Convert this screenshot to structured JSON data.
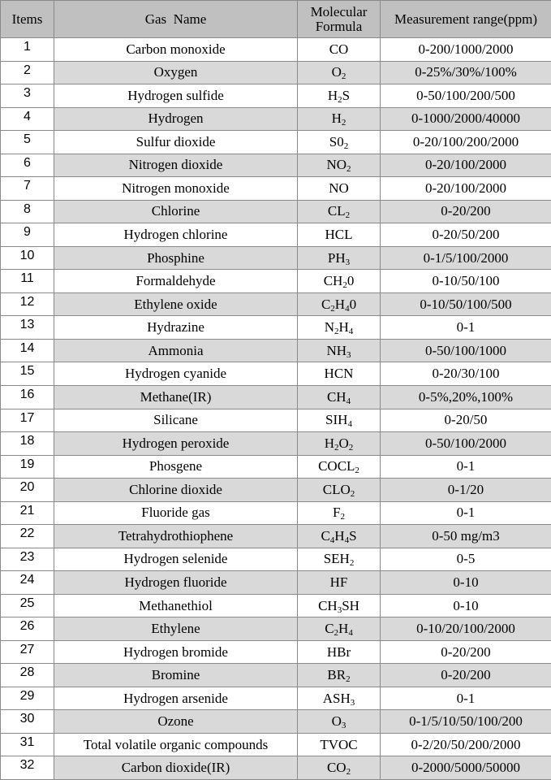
{
  "table": {
    "headers": [
      "Items",
      "Gas  Name",
      "Molecular Formula",
      "Measurement range(ppm)"
    ],
    "rows": [
      [
        1,
        "Carbon monoxide",
        [
          {
            "text": "CO"
          }
        ],
        "0-200/1000/2000"
      ],
      [
        2,
        "Oxygen",
        [
          {
            "text": "O"
          },
          {
            "sub": "2"
          }
        ],
        "0-25%/30%/100%"
      ],
      [
        3,
        "Hydrogen sulfide",
        [
          {
            "text": "H"
          },
          {
            "sub": "2"
          },
          {
            "text": "S"
          }
        ],
        "0-50/100/200/500"
      ],
      [
        4,
        "Hydrogen",
        [
          {
            "text": "H"
          },
          {
            "sub": "2"
          }
        ],
        "0-1000/2000/40000"
      ],
      [
        5,
        "Sulfur dioxide",
        [
          {
            "text": "S0"
          },
          {
            "sub": "2"
          }
        ],
        "0-20/100/200/2000"
      ],
      [
        6,
        "Nitrogen dioxide",
        [
          {
            "text": "NO"
          },
          {
            "sub": "2"
          }
        ],
        "0-20/100/2000"
      ],
      [
        7,
        "Nitrogen monoxide",
        [
          {
            "text": "NO"
          }
        ],
        "0-20/100/2000"
      ],
      [
        8,
        "Chlorine",
        [
          {
            "text": "CL"
          },
          {
            "sub": "2"
          }
        ],
        "0-20/200"
      ],
      [
        9,
        "Hydrogen chlorine",
        [
          {
            "text": "HCL"
          }
        ],
        "0-20/50/200"
      ],
      [
        10,
        "Phosphine",
        [
          {
            "text": "PH"
          },
          {
            "sub": "3"
          }
        ],
        "0-1/5/100/2000"
      ],
      [
        11,
        "Formaldehyde",
        [
          {
            "text": "CH"
          },
          {
            "sub": "2"
          },
          {
            "text": "0"
          }
        ],
        "0-10/50/100"
      ],
      [
        12,
        "Ethylene oxide",
        [
          {
            "text": "C"
          },
          {
            "sub": "2"
          },
          {
            "text": "H"
          },
          {
            "sub": "4"
          },
          {
            "text": "0"
          }
        ],
        "0-10/50/100/500"
      ],
      [
        13,
        "Hydrazine",
        [
          {
            "text": "N"
          },
          {
            "sub": "2"
          },
          {
            "text": "H"
          },
          {
            "sub": "4"
          }
        ],
        "0-1"
      ],
      [
        14,
        "Ammonia",
        [
          {
            "text": "NH"
          },
          {
            "sub": "3"
          }
        ],
        "0-50/100/1000"
      ],
      [
        15,
        "Hydrogen cyanide",
        [
          {
            "text": "HCN"
          }
        ],
        "0-20/30/100"
      ],
      [
        16,
        "Methane(IR)",
        [
          {
            "text": "CH"
          },
          {
            "sub": "4"
          }
        ],
        "0-5%,20%,100%"
      ],
      [
        17,
        "Silicane",
        [
          {
            "text": "SIH"
          },
          {
            "sub": "4"
          }
        ],
        "0-20/50"
      ],
      [
        18,
        "Hydrogen peroxide",
        [
          {
            "text": "H"
          },
          {
            "sub": "2"
          },
          {
            "text": "O"
          },
          {
            "sub": "2"
          }
        ],
        "0-50/100/2000"
      ],
      [
        19,
        "Phosgene",
        [
          {
            "text": "COCL"
          },
          {
            "sub": "2"
          }
        ],
        "0-1"
      ],
      [
        20,
        "Chlorine dioxide",
        [
          {
            "text": "CLO"
          },
          {
            "sub": "2"
          }
        ],
        "0-1/20"
      ],
      [
        21,
        "Fluoride gas",
        [
          {
            "text": "F"
          },
          {
            "sub": "2"
          }
        ],
        "0-1"
      ],
      [
        22,
        "Tetrahydrothiophene",
        [
          {
            "text": "C"
          },
          {
            "sub": "4"
          },
          {
            "text": "H"
          },
          {
            "sub": "4"
          },
          {
            "text": "S"
          }
        ],
        "0-50 mg/m3"
      ],
      [
        23,
        "Hydrogen selenide",
        [
          {
            "text": "SEH"
          },
          {
            "sub": "2"
          }
        ],
        "0-5"
      ],
      [
        24,
        "Hydrogen fluoride",
        [
          {
            "text": "HF"
          }
        ],
        "0-10"
      ],
      [
        25,
        "Methanethiol",
        [
          {
            "text": "CH"
          },
          {
            "sub": "3"
          },
          {
            "text": "SH"
          }
        ],
        "0-10"
      ],
      [
        26,
        "Ethylene",
        [
          {
            "text": "C"
          },
          {
            "sub": "2"
          },
          {
            "text": "H"
          },
          {
            "sub": "4"
          }
        ],
        "0-10/20/100/2000"
      ],
      [
        27,
        "Hydrogen bromide",
        [
          {
            "text": "HBr"
          }
        ],
        "0-20/200"
      ],
      [
        28,
        "Bromine",
        [
          {
            "text": "BR"
          },
          {
            "sub": "2"
          }
        ],
        "0-20/200"
      ],
      [
        29,
        "Hydrogen arsenide",
        [
          {
            "text": "ASH"
          },
          {
            "sub": "3"
          }
        ],
        "0-1"
      ],
      [
        30,
        "Ozone",
        [
          {
            "text": "O"
          },
          {
            "sub": "3"
          }
        ],
        "0-1/5/10/50/100/200"
      ],
      [
        31,
        "Total volatile organic compounds",
        [
          {
            "text": "TVOC"
          }
        ],
        "0-2/20/50/200/2000"
      ],
      [
        32,
        "Carbon dioxide(IR)",
        [
          {
            "text": "CO"
          },
          {
            "sub": "2"
          }
        ],
        "0-2000/5000/50000"
      ]
    ]
  }
}
